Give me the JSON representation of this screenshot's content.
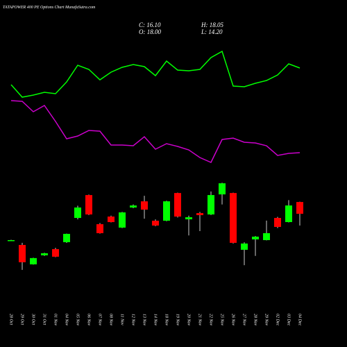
{
  "chart_data": {
    "type": "candlestick",
    "title": "TATAPOWER 400 PE Options Chart MunafaSutra.com",
    "stats": [
      "C: 16.10",
      "H: 18.05",
      "O: 18.00",
      "L: 14.20"
    ],
    "categories": [
      "28 Oct",
      "29 Oct",
      "30 Oct",
      "31 Oct",
      "01 Nov",
      "04 Nov",
      "05 Nov",
      "06 Nov",
      "07 Nov",
      "08 Nov",
      "11 Nov",
      "12 Nov",
      "13 Nov",
      "14 Nov",
      "18 Nov",
      "19 Nov",
      "20 Nov",
      "21 Nov",
      "22 Nov",
      "25 Nov",
      "26 Nov",
      "27 Nov",
      "28 Nov",
      "29 Nov",
      "02 Dec",
      "03 Dec",
      "04 Dec"
    ],
    "open": [
      11.85,
      11.07,
      7.94,
      9.4,
      10.4,
      11.52,
      15.43,
      19.12,
      14.42,
      15.65,
      13.87,
      17.11,
      18.11,
      14.98,
      14.98,
      19.45,
      15.21,
      16.21,
      15.99,
      19.23,
      19.45,
      10.29,
      11.97,
      11.85,
      15.43,
      14.76,
      18.0
    ],
    "high": [
      11.9,
      11.41,
      9.0,
      9.8,
      10.6,
      12.9,
      17.4,
      19.2,
      14.6,
      15.8,
      16.4,
      17.6,
      19.0,
      15.2,
      18.2,
      19.5,
      15.8,
      16.4,
      19.7,
      21.1,
      19.5,
      11.5,
      12.5,
      15.0,
      15.6,
      18.3,
      18.05
    ],
    "low": [
      11.8,
      7.05,
      7.9,
      9.3,
      9.1,
      11.4,
      15.2,
      15.9,
      12.9,
      14.7,
      13.8,
      17.0,
      15.3,
      14.1,
      14.9,
      15.5,
      12.6,
      13.3,
      15.9,
      17.6,
      11.3,
      7.8,
      9.3,
      11.8,
      13.8,
      14.7,
      14.2
    ],
    "close": [
      11.85,
      8.28,
      8.95,
      9.73,
      9.17,
      12.86,
      17.11,
      15.99,
      12.97,
      14.76,
      16.32,
      17.44,
      16.77,
      14.2,
      18.11,
      15.65,
      15.54,
      15.88,
      19.12,
      21.02,
      11.41,
      11.3,
      12.41,
      12.97,
      13.98,
      17.44,
      16.1
    ],
    "up_color": "#00ff00",
    "down_color": "#ff0000",
    "ylim": [
      5.8,
      22.6
    ],
    "y2lim": [
      0,
      250
    ],
    "series": [
      {
        "color": "#00ff00",
        "axis": "y2",
        "values": [
          128,
          110,
          113,
          117,
          115,
          132,
          156,
          150,
          135,
          146,
          153,
          157,
          154,
          141,
          162,
          149,
          148,
          150,
          167,
          176,
          126,
          125,
          130,
          134,
          142,
          158,
          152
        ]
      },
      {
        "color": "#cc00cc",
        "axis": "y2",
        "values": [
          105,
          104,
          89,
          98,
          75,
          50,
          54,
          62,
          61,
          41,
          41,
          40,
          53,
          35,
          43,
          39,
          34,
          23,
          16,
          49,
          51,
          45,
          44,
          40,
          26,
          29,
          30
        ]
      }
    ]
  }
}
